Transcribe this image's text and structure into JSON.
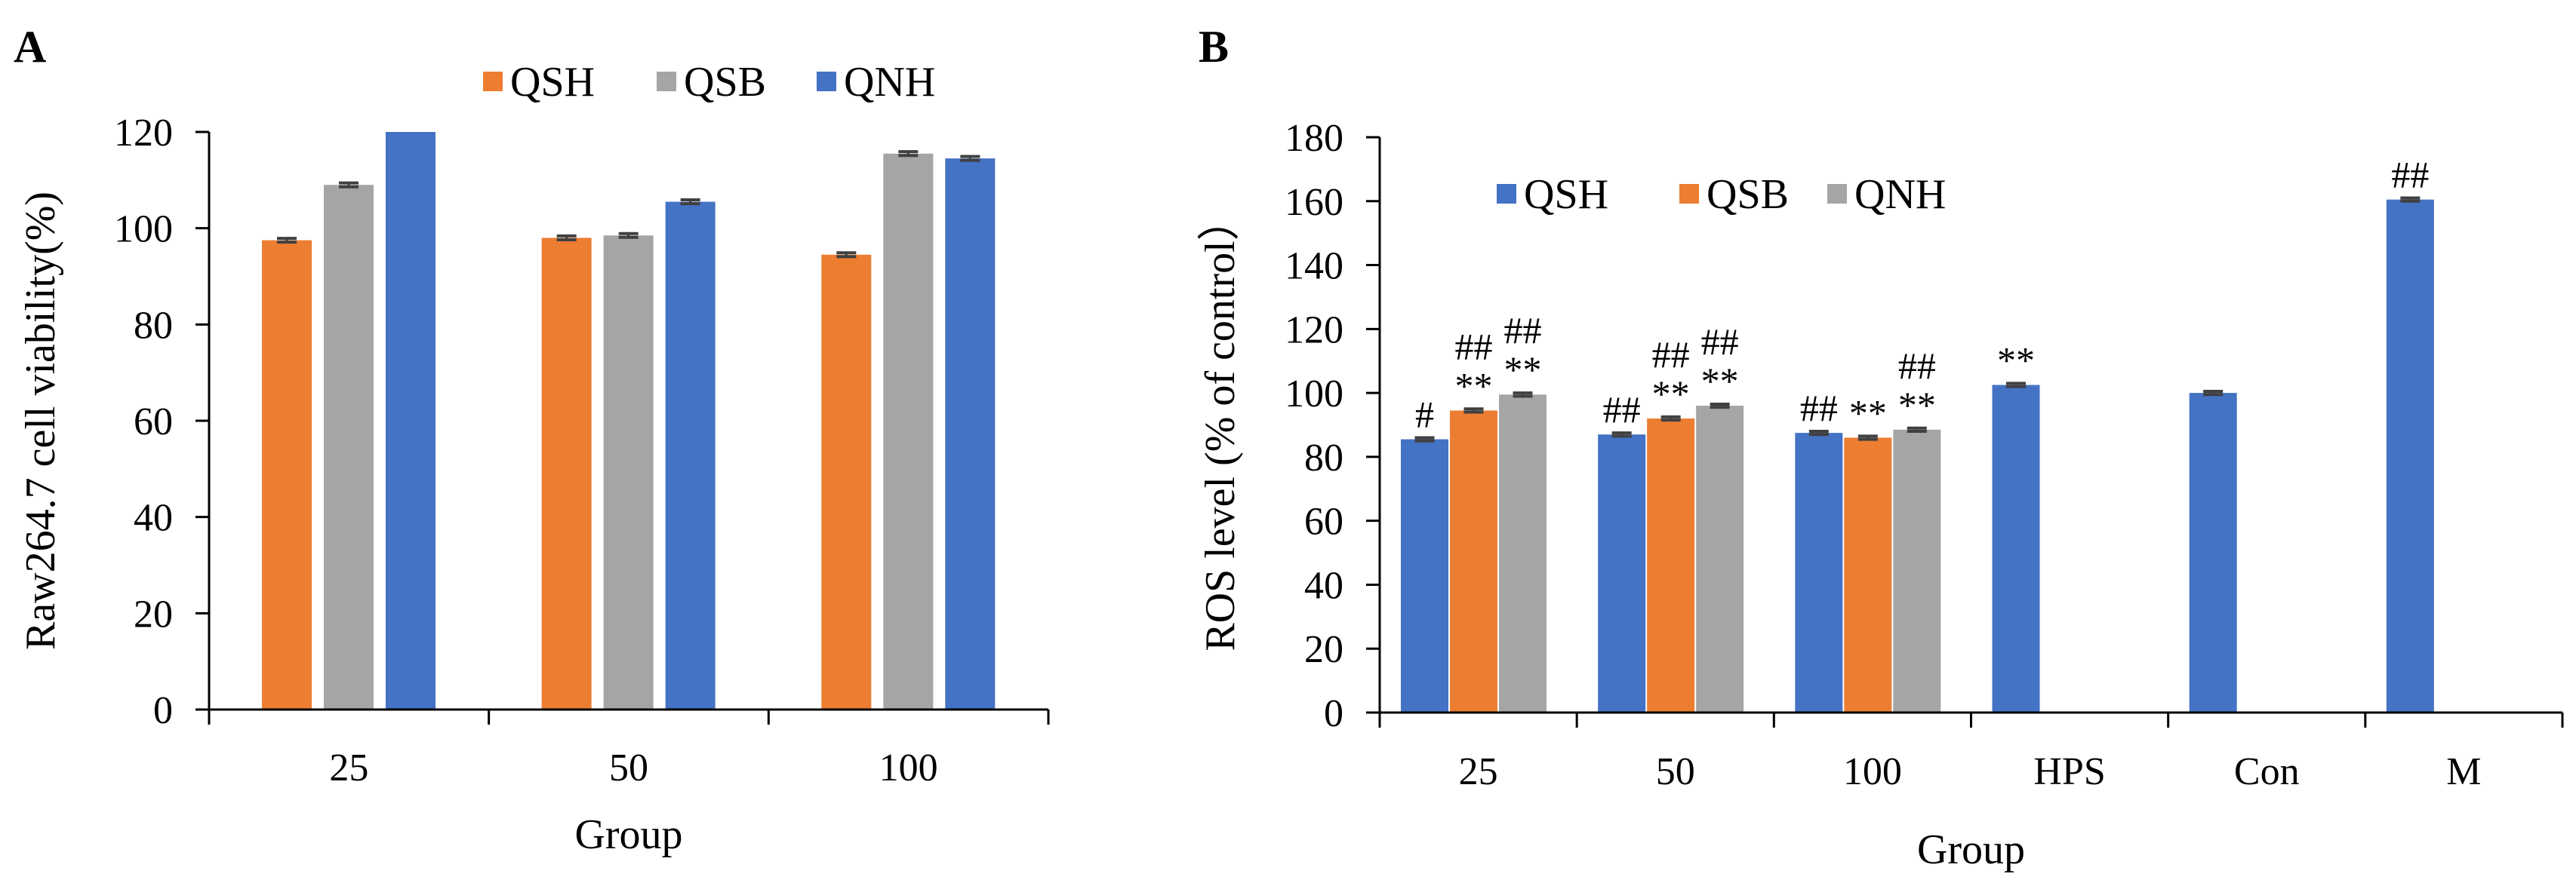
{
  "chart_data": [
    {
      "panel": "A",
      "type": "bar",
      "title": "",
      "xlabel": "Group",
      "ylabel": "Raw264.7 cell viability(%)",
      "categories": [
        "25",
        "50",
        "100"
      ],
      "ylim": [
        0,
        120
      ],
      "yticks": [
        0,
        20,
        40,
        60,
        80,
        100,
        120
      ],
      "grid": false,
      "legend_position": "top",
      "series": [
        {
          "name": "QSH",
          "color": "#ED7D31",
          "values": [
            97.5,
            98.0,
            94.5
          ],
          "errors": [
            0.4,
            0.4,
            0.4
          ]
        },
        {
          "name": "QSB",
          "color": "#A5A5A5",
          "values": [
            109.0,
            98.5,
            115.5
          ],
          "errors": [
            0.4,
            0.4,
            0.4
          ]
        },
        {
          "name": "QNH",
          "color": "#4472C4",
          "values": [
            120.0,
            105.5,
            114.5
          ],
          "errors": [
            0.0,
            0.4,
            0.4
          ]
        }
      ],
      "annotations": []
    },
    {
      "panel": "B",
      "type": "bar",
      "title": "",
      "xlabel": "Group",
      "ylabel": "ROS  level (% of control）",
      "categories": [
        "25",
        "50",
        "100",
        "HPS",
        "Con",
        "M"
      ],
      "ylim": [
        0,
        180
      ],
      "yticks": [
        0,
        20,
        40,
        60,
        80,
        100,
        120,
        140,
        160,
        180
      ],
      "grid": false,
      "legend_position": "top-left",
      "series": [
        {
          "name": "QSH",
          "color": "#4472C4",
          "values": [
            85.5,
            87.0,
            87.5,
            102.5,
            100.0,
            160.5
          ],
          "errors": [
            0.5,
            0.5,
            0.5,
            0.5,
            0.5,
            0.5
          ]
        },
        {
          "name": "QSB",
          "color": "#ED7D31",
          "values": [
            94.5,
            92.0,
            86.0,
            null,
            null,
            null
          ],
          "errors": [
            0.5,
            0.5,
            0.5,
            null,
            null,
            null
          ]
        },
        {
          "name": "QNH",
          "color": "#A5A5A5",
          "values": [
            99.5,
            96.0,
            88.5,
            null,
            null,
            null
          ],
          "errors": [
            0.5,
            0.5,
            0.5,
            null,
            null,
            null
          ]
        }
      ],
      "annotations": [
        {
          "category": "25",
          "series": "QSH",
          "lines": [
            "#"
          ]
        },
        {
          "category": "25",
          "series": "QSB",
          "lines": [
            "##",
            "**"
          ]
        },
        {
          "category": "25",
          "series": "QNH",
          "lines": [
            "##",
            "**"
          ]
        },
        {
          "category": "50",
          "series": "QSH",
          "lines": [
            "##"
          ]
        },
        {
          "category": "50",
          "series": "QSB",
          "lines": [
            "##",
            "**"
          ]
        },
        {
          "category": "50",
          "series": "QNH",
          "lines": [
            "##",
            "**"
          ]
        },
        {
          "category": "100",
          "series": "QSH",
          "lines": [
            "##"
          ]
        },
        {
          "category": "100",
          "series": "QSB",
          "lines": [
            "**"
          ]
        },
        {
          "category": "100",
          "series": "QNH",
          "lines": [
            "##",
            "**"
          ]
        },
        {
          "category": "HPS",
          "series": "QSH",
          "lines": [
            "**"
          ]
        },
        {
          "category": "M",
          "series": "QSH",
          "lines": [
            "##"
          ]
        }
      ]
    }
  ],
  "error_bar_color": "#404040",
  "axis_color": "#000000"
}
